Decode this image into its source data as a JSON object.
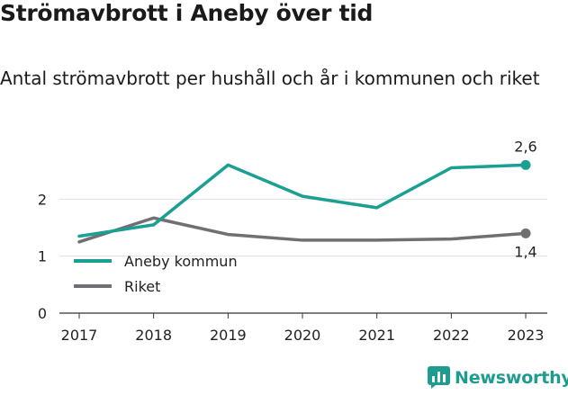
{
  "title": "Strömavbrott i Aneby över tid",
  "subtitle": "Antal strömavbrott per hushåll och år i kommunen och riket",
  "brand": {
    "name": "Newsworthy",
    "icon": "newsworthy-logo-icon"
  },
  "colors": {
    "aneby": "#1a9f93",
    "riket": "#6f6f74",
    "axis": "#333333",
    "grid": "#e0e0e0"
  },
  "chart_data": {
    "type": "line",
    "x": [
      "2017",
      "2018",
      "2019",
      "2020",
      "2021",
      "2022",
      "2023"
    ],
    "y_ticks": [
      "0",
      "1",
      "2"
    ],
    "ylim": [
      0,
      3.0
    ],
    "legend": "left-middle",
    "series": [
      {
        "name": "Aneby kommun",
        "values": [
          1.35,
          1.55,
          2.6,
          2.05,
          1.85,
          2.55,
          2.6
        ],
        "end_label": "2,6"
      },
      {
        "name": "Riket",
        "values": [
          1.25,
          1.67,
          1.38,
          1.28,
          1.28,
          1.3,
          1.4
        ],
        "end_label": "1,4"
      }
    ]
  }
}
